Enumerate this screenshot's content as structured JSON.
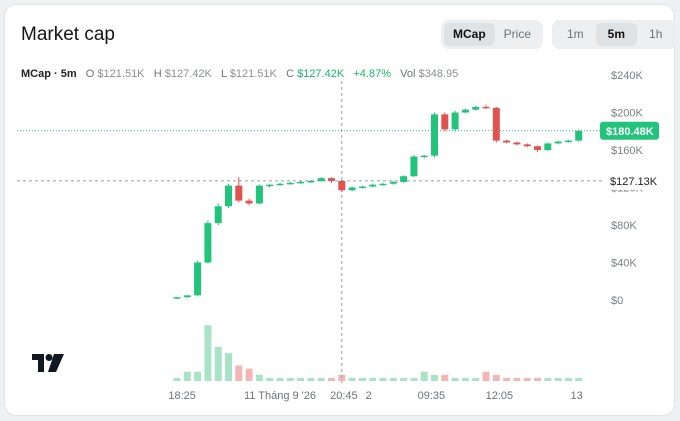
{
  "header": {
    "title": "Market cap",
    "type_tabs": [
      {
        "label": "MCap",
        "active": true
      },
      {
        "label": "Price",
        "active": false
      }
    ],
    "interval_tabs": [
      {
        "label": "1m",
        "active": false
      },
      {
        "label": "5m",
        "active": true
      },
      {
        "label": "1h",
        "active": false
      }
    ]
  },
  "ohlc": {
    "symbol": "MCap · 5m",
    "o_key": "O",
    "o": "$121.51K",
    "h_key": "H",
    "h": "$127.42K",
    "l_key": "L",
    "l": "$121.51K",
    "c_key": "C",
    "c": "$127.42K",
    "change": "+4.87%",
    "vol_key": "Vol",
    "vol": "$348.95"
  },
  "colors": {
    "up": "#22c37a",
    "down": "#e0534f",
    "vol_up": "#a8e3c7",
    "vol_down": "#f2b6b4",
    "price_line": "#22c37a"
  },
  "chart_data": {
    "type": "candlestick",
    "y_ticks": [
      "$240K",
      "$200K",
      "$160K",
      "$120K",
      "$80K",
      "$40K",
      "$0"
    ],
    "y_tick_values": [
      240,
      200,
      160,
      120,
      80,
      40,
      0
    ],
    "ylim": [
      0,
      240
    ],
    "x_ticks": [
      {
        "label": "18:25",
        "i": 0.5
      },
      {
        "label": "11 Tháng 9 '26",
        "i": 10
      },
      {
        "label": "20:45",
        "i": 16.2
      },
      {
        "label": "2",
        "i": 18.6
      },
      {
        "label": "09:35",
        "i": 24.7
      },
      {
        "label": "12:05",
        "i": 31.3
      },
      {
        "label": "13",
        "i": 38.8
      }
    ],
    "last_price_label": "$180.48K",
    "last_price": 180.48,
    "crosshair_price_label": "$127.13K",
    "crosshair_price": 127.13,
    "crosshair_index": 16,
    "candles": [
      {
        "o": 2,
        "h": 3,
        "l": 1,
        "c": 3
      },
      {
        "o": 3,
        "h": 5,
        "l": 2,
        "c": 5
      },
      {
        "o": 5,
        "h": 42,
        "l": 4,
        "c": 40
      },
      {
        "o": 40,
        "h": 85,
        "l": 39,
        "c": 82
      },
      {
        "o": 82,
        "h": 103,
        "l": 80,
        "c": 100
      },
      {
        "o": 100,
        "h": 124,
        "l": 98,
        "c": 122
      },
      {
        "o": 122,
        "h": 131,
        "l": 104,
        "c": 106
      },
      {
        "o": 106,
        "h": 108,
        "l": 101,
        "c": 103
      },
      {
        "o": 103,
        "h": 123,
        "l": 102,
        "c": 122
      },
      {
        "o": 122,
        "h": 124,
        "l": 120,
        "c": 123
      },
      {
        "o": 123,
        "h": 125,
        "l": 122,
        "c": 124
      },
      {
        "o": 124,
        "h": 126,
        "l": 123,
        "c": 125
      },
      {
        "o": 125,
        "h": 127,
        "l": 124,
        "c": 126
      },
      {
        "o": 126,
        "h": 128,
        "l": 125,
        "c": 127
      },
      {
        "o": 127,
        "h": 131,
        "l": 126,
        "c": 130
      },
      {
        "o": 130,
        "h": 131,
        "l": 125,
        "c": 127
      },
      {
        "o": 127,
        "h": 128,
        "l": 115,
        "c": 117
      },
      {
        "o": 117,
        "h": 121,
        "l": 116,
        "c": 120
      },
      {
        "o": 120,
        "h": 122,
        "l": 119,
        "c": 121
      },
      {
        "o": 121,
        "h": 124,
        "l": 120,
        "c": 123
      },
      {
        "o": 123,
        "h": 125,
        "l": 122,
        "c": 124
      },
      {
        "o": 124,
        "h": 127,
        "l": 123,
        "c": 126
      },
      {
        "o": 126,
        "h": 133,
        "l": 125,
        "c": 132
      },
      {
        "o": 132,
        "h": 155,
        "l": 131,
        "c": 153
      },
      {
        "o": 153,
        "h": 155,
        "l": 151,
        "c": 154
      },
      {
        "o": 154,
        "h": 200,
        "l": 152,
        "c": 198
      },
      {
        "o": 198,
        "h": 200,
        "l": 180,
        "c": 182
      },
      {
        "o": 182,
        "h": 202,
        "l": 180,
        "c": 200
      },
      {
        "o": 200,
        "h": 204,
        "l": 199,
        "c": 203
      },
      {
        "o": 203,
        "h": 207,
        "l": 202,
        "c": 206
      },
      {
        "o": 206,
        "h": 208,
        "l": 204,
        "c": 205
      },
      {
        "o": 205,
        "h": 206,
        "l": 168,
        "c": 170
      },
      {
        "o": 170,
        "h": 171,
        "l": 167,
        "c": 168
      },
      {
        "o": 168,
        "h": 169,
        "l": 165,
        "c": 166
      },
      {
        "o": 166,
        "h": 167,
        "l": 163,
        "c": 164
      },
      {
        "o": 164,
        "h": 165,
        "l": 158,
        "c": 160
      },
      {
        "o": 160,
        "h": 168,
        "l": 159,
        "c": 167
      },
      {
        "o": 167,
        "h": 170,
        "l": 166,
        "c": 169
      },
      {
        "o": 169,
        "h": 171,
        "l": 168,
        "c": 170
      },
      {
        "o": 170,
        "h": 182,
        "l": 169,
        "c": 180.48
      }
    ],
    "volume": [
      1,
      3,
      3,
      18,
      11,
      9,
      5,
      4,
      2,
      1,
      1,
      1,
      1,
      1,
      1,
      1,
      2,
      1,
      1,
      1,
      1,
      1,
      1,
      1,
      3,
      2,
      2,
      1,
      1,
      1,
      3,
      2,
      1,
      1,
      1,
      1,
      1,
      1,
      1,
      1
    ]
  }
}
